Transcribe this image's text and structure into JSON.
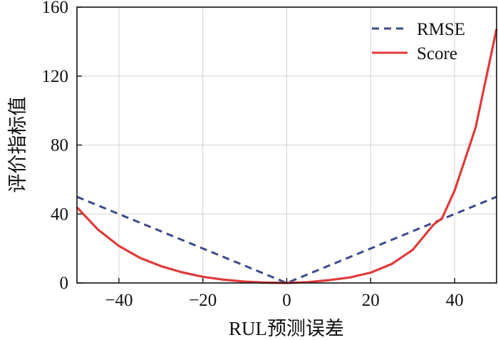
{
  "chart_data": {
    "type": "line",
    "title": "",
    "xlabel": "RUL预测误差",
    "ylabel": "评价指标值",
    "xlim": [
      -50,
      50
    ],
    "ylim": [
      0,
      160
    ],
    "x_ticks": [
      -40,
      -20,
      0,
      20,
      40
    ],
    "x_tick_labels": [
      "−40",
      "−20",
      "0",
      "20",
      "40"
    ],
    "y_ticks": [
      0,
      40,
      80,
      120,
      160
    ],
    "y_tick_labels": [
      "0",
      "40",
      "80",
      "120",
      "160"
    ],
    "grid": true,
    "legend_position": "top-right",
    "series": [
      {
        "name": "RMSE",
        "style": "dashed",
        "color": "#3d4a8a",
        "x": [
          -50,
          -40,
          -30,
          -20,
          -10,
          0,
          10,
          20,
          30,
          40,
          50
        ],
        "values": [
          50,
          40,
          30,
          20,
          10,
          0,
          10,
          20,
          30,
          40,
          50
        ]
      },
      {
        "name": "Score",
        "style": "solid",
        "color": "#e03a3a",
        "x": [
          -50,
          -45,
          -40,
          -35,
          -30,
          -25,
          -20,
          -15,
          -10,
          -5,
          0,
          5,
          10,
          15,
          20,
          25,
          30,
          35,
          37,
          40,
          45,
          50
        ],
        "values": [
          43.9,
          31.0,
          21.5,
          14.6,
          9.8,
          6.2,
          3.6,
          1.9,
          0.8,
          0.2,
          0,
          0.5,
          1.6,
          3.2,
          6.0,
          11.0,
          19.2,
          33.9,
          37.5,
          53.6,
          90.0,
          147.4
        ]
      }
    ]
  }
}
